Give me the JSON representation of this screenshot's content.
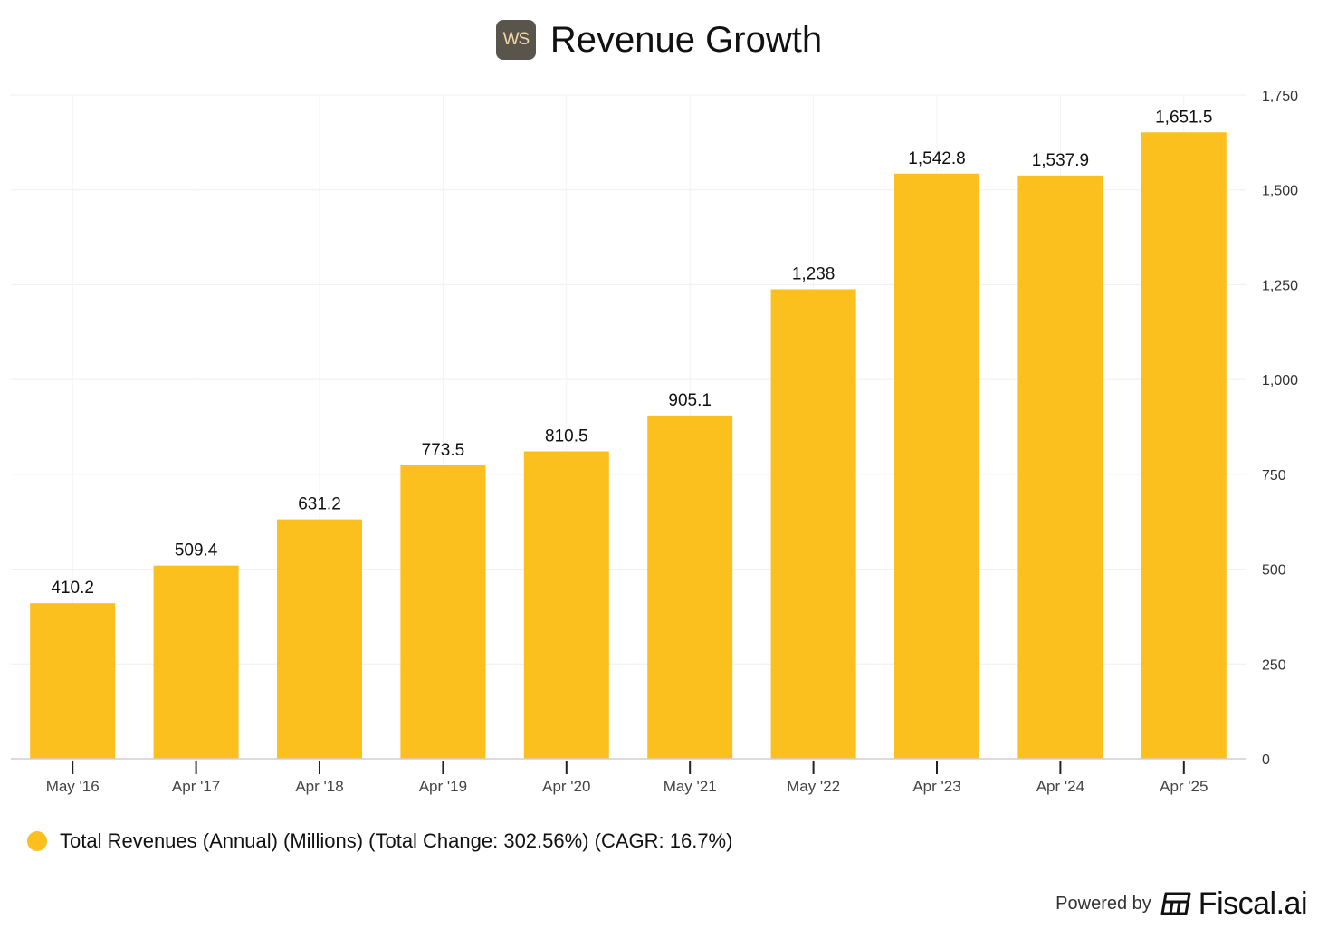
{
  "header": {
    "logo_text": "WS",
    "title": "Revenue Growth"
  },
  "chart_data": {
    "type": "bar",
    "title": "Revenue Growth",
    "categories": [
      "May '16",
      "Apr '17",
      "Apr '18",
      "Apr '19",
      "Apr '20",
      "May '21",
      "May '22",
      "Apr '23",
      "Apr '24",
      "Apr '25"
    ],
    "values": [
      410.2,
      509.4,
      631.2,
      773.5,
      810.5,
      905.1,
      1238,
      1542.8,
      1537.9,
      1651.5
    ],
    "value_labels": [
      "410.2",
      "509.4",
      "631.2",
      "773.5",
      "810.5",
      "905.1",
      "1,238",
      "1,542.8",
      "1,537.9",
      "1,651.5"
    ],
    "y_ticks": [
      0,
      250,
      500,
      750,
      1000,
      1250,
      1500,
      1750
    ],
    "y_tick_labels": [
      "0",
      "250",
      "500",
      "750",
      "1,000",
      "1,250",
      "1,500",
      "1,750"
    ],
    "ylim": [
      0,
      1750
    ],
    "y_axis_position": "right",
    "grid": true,
    "bar_color": "#fbbf1e",
    "xlabel": "",
    "ylabel": "",
    "legend_position": "bottom-left"
  },
  "legend": {
    "label": "Total Revenues (Annual) (Millions) (Total Change: 302.56%) (CAGR: 16.7%)",
    "color": "#fbbf1e"
  },
  "footer": {
    "powered_by": "Powered by",
    "brand": "Fiscal.ai"
  }
}
